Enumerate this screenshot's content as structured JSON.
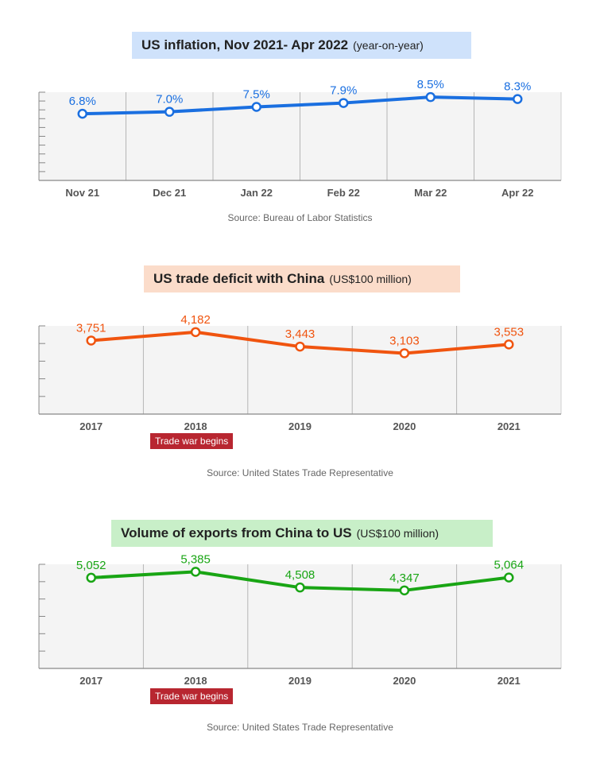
{
  "charts": [
    {
      "title": "US inflation, Nov 2021- Apr 2022",
      "unit": "(year-on-year)",
      "source": "Source: Bureau of Labor Statistics",
      "color": "#1a6fe0",
      "title_bg": "#cfe2fb"
    },
    {
      "title": "US trade deficit with China",
      "unit": "(US$100 million)",
      "source": "Source: United States Trade Representative",
      "color": "#f0540f",
      "title_bg": "#fbdcca",
      "badge": "Trade war begins"
    },
    {
      "title": "Volume of exports from China to US",
      "unit": "(US$100 million)",
      "source": "Source: United States Trade Representative",
      "color": "#19a514",
      "title_bg": "#c8efc8",
      "badge": "Trade war begins"
    }
  ],
  "chart_data": [
    {
      "type": "line",
      "title": "US inflation, Nov 2021- Apr 2022",
      "subtitle": "(year-on-year)",
      "categories": [
        "Nov 21",
        "Dec 21",
        "Jan 22",
        "Feb 22",
        "Mar 22",
        "Apr 22"
      ],
      "values": [
        6.8,
        7.0,
        7.5,
        7.9,
        8.5,
        8.3
      ],
      "data_labels": [
        "6.8%",
        "7.0%",
        "7.5%",
        "7.9%",
        "8.5%",
        "8.3%"
      ],
      "ylim": [
        0,
        9
      ],
      "grid": true
    },
    {
      "type": "line",
      "title": "US trade deficit with China",
      "subtitle": "(US$100 million)",
      "categories": [
        "2017",
        "2018",
        "2019",
        "2020",
        "2021"
      ],
      "values": [
        3751,
        4182,
        3443,
        3103,
        3553
      ],
      "data_labels": [
        "3,751",
        "4,182",
        "3,443",
        "3,103",
        "3,553"
      ],
      "ylim": [
        0,
        4500
      ],
      "grid": true,
      "annotation": {
        "category": "2018",
        "text": "Trade war begins"
      }
    },
    {
      "type": "line",
      "title": "Volume of exports from China to US",
      "subtitle": "(US$100 million)",
      "categories": [
        "2017",
        "2018",
        "2019",
        "2020",
        "2021"
      ],
      "values": [
        5052,
        5385,
        4508,
        4347,
        5064
      ],
      "data_labels": [
        "5,052",
        "5,385",
        "4,508",
        "4,347",
        "5,064"
      ],
      "ylim": [
        0,
        5800
      ],
      "grid": true,
      "annotation": {
        "category": "2018",
        "text": "Trade war begins"
      }
    }
  ]
}
